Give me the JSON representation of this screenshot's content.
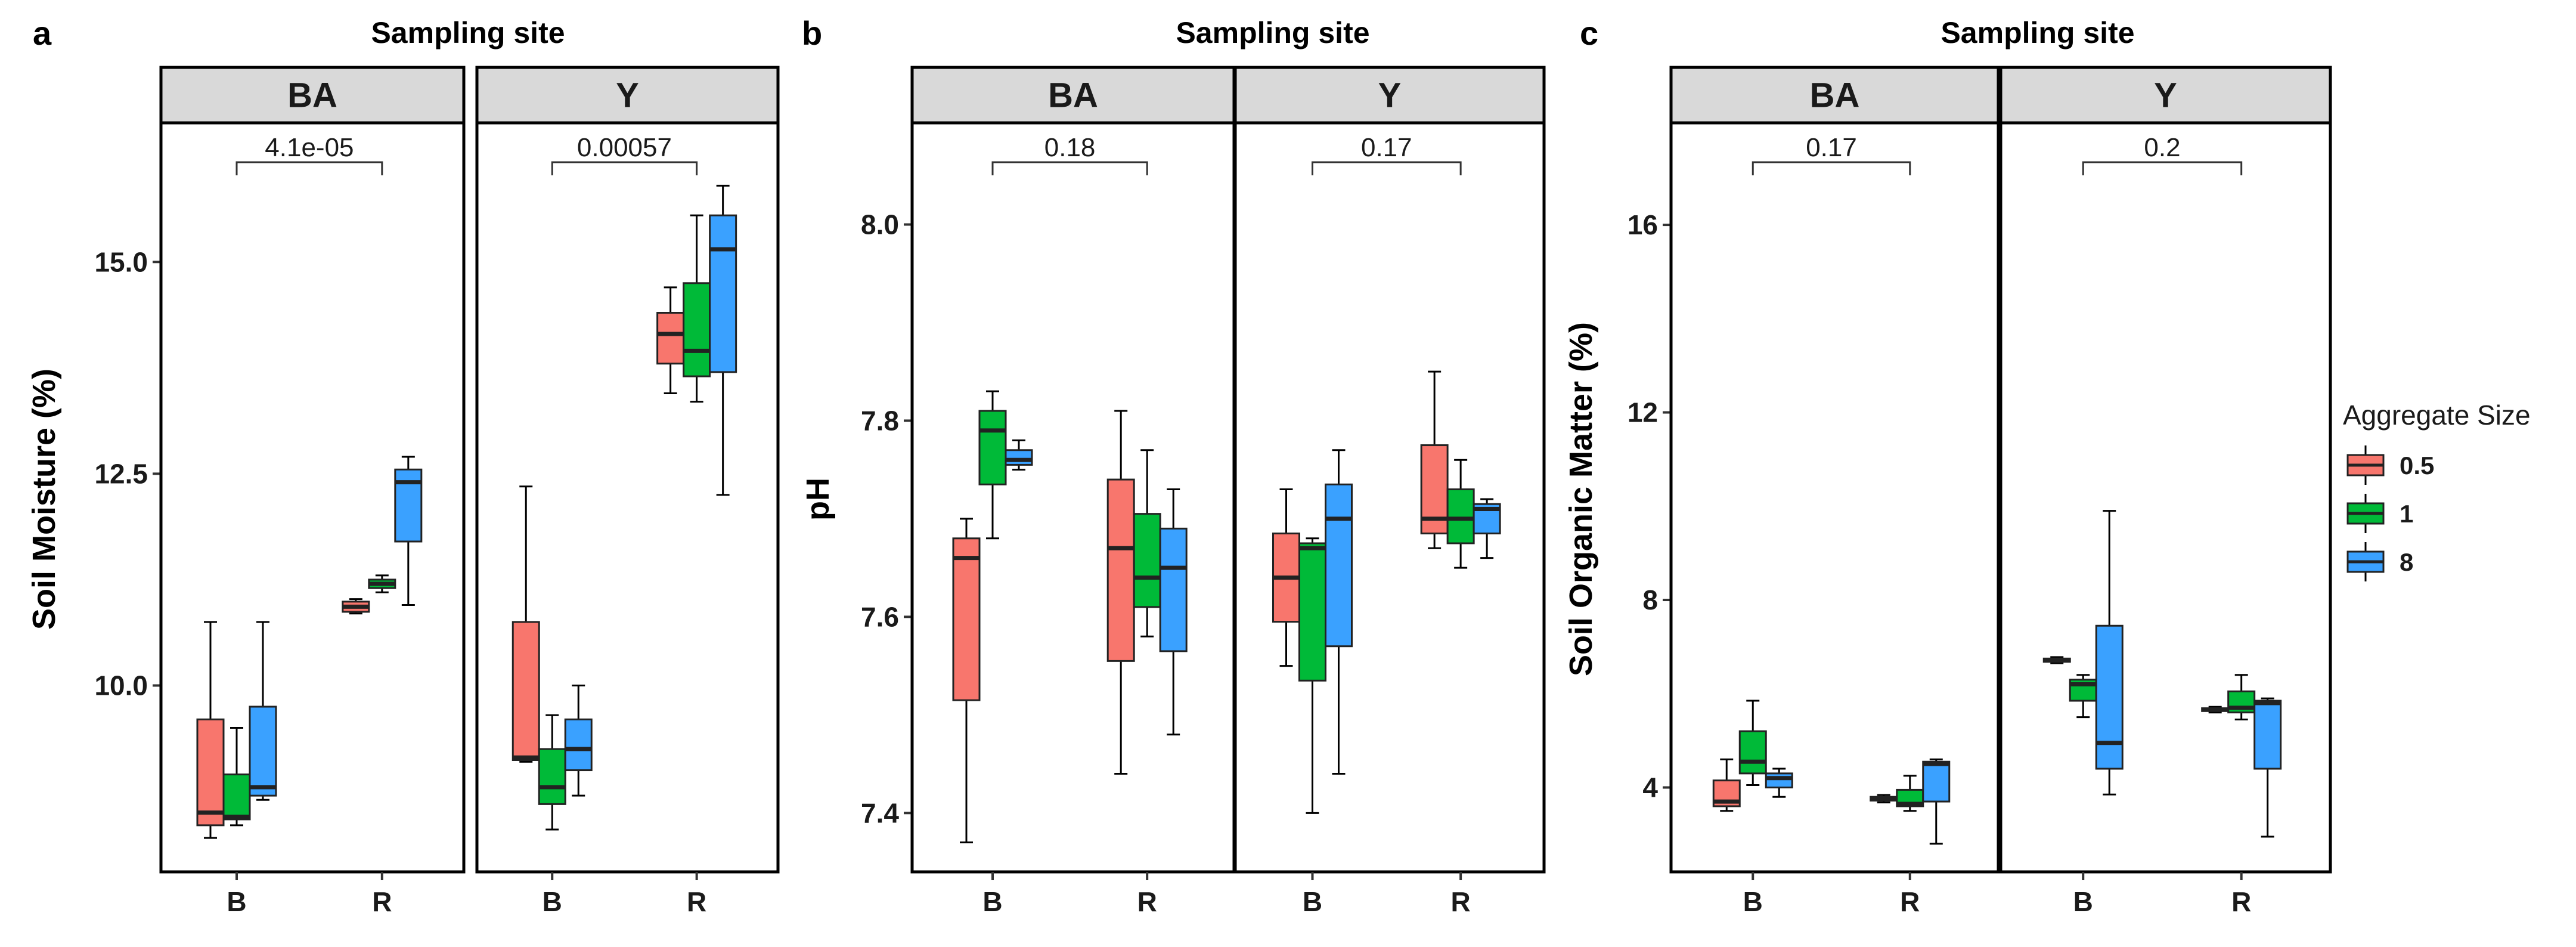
{
  "legend": {
    "title": "Aggregate Size",
    "items": [
      {
        "label": "0.5",
        "color": "#F8766D"
      },
      {
        "label": "1",
        "color": "#00BA38"
      },
      {
        "label": "8",
        "color": "#3AA1FF"
      }
    ]
  },
  "chart_data": [
    {
      "type": "box",
      "panel_label": "a",
      "title": "Sampling site",
      "ylabel": "Soil Moisture (%)",
      "ylim": [
        7.8,
        16.6
      ],
      "yticks": [
        10.0,
        12.5,
        15.0
      ],
      "ytick_labels": [
        "10.0",
        "12.5",
        "15.0"
      ],
      "categories": [
        "B",
        "R"
      ],
      "facets": [
        {
          "strip": "BA",
          "p_value": "4.1e-05",
          "groups": [
            {
              "x": "B",
              "series": [
                {
                  "name": "0.5",
                  "stats": {
                    "min": 8.2,
                    "q1": 8.35,
                    "median": 8.5,
                    "q3": 9.6,
                    "max": 10.75
                  }
                },
                {
                  "name": "1",
                  "stats": {
                    "min": 8.35,
                    "q1": 8.42,
                    "median": 8.45,
                    "q3": 8.95,
                    "max": 9.5
                  }
                },
                {
                  "name": "8",
                  "stats": {
                    "min": 8.65,
                    "q1": 8.7,
                    "median": 8.8,
                    "q3": 9.75,
                    "max": 10.75
                  }
                }
              ]
            },
            {
              "x": "R",
              "series": [
                {
                  "name": "0.5",
                  "stats": {
                    "min": 10.85,
                    "q1": 10.87,
                    "median": 10.93,
                    "q3": 10.99,
                    "max": 11.02
                  }
                },
                {
                  "name": "1",
                  "stats": {
                    "min": 11.1,
                    "q1": 11.15,
                    "median": 11.2,
                    "q3": 11.25,
                    "max": 11.3
                  }
                },
                {
                  "name": "8",
                  "stats": {
                    "min": 10.95,
                    "q1": 11.7,
                    "median": 12.4,
                    "q3": 12.55,
                    "max": 12.7
                  }
                }
              ]
            }
          ]
        },
        {
          "strip": "Y",
          "p_value": "0.00057",
          "groups": [
            {
              "x": "B",
              "series": [
                {
                  "name": "0.5",
                  "stats": {
                    "min": 9.1,
                    "q1": 9.12,
                    "median": 9.15,
                    "q3": 10.75,
                    "max": 12.35
                  }
                },
                {
                  "name": "1",
                  "stats": {
                    "min": 8.3,
                    "q1": 8.6,
                    "median": 8.8,
                    "q3": 9.25,
                    "max": 9.65
                  }
                },
                {
                  "name": "8",
                  "stats": {
                    "min": 8.7,
                    "q1": 9.0,
                    "median": 9.25,
                    "q3": 9.6,
                    "max": 10.0
                  }
                }
              ]
            },
            {
              "x": "R",
              "series": [
                {
                  "name": "0.5",
                  "stats": {
                    "min": 13.45,
                    "q1": 13.8,
                    "median": 14.15,
                    "q3": 14.4,
                    "max": 14.7
                  }
                },
                {
                  "name": "1",
                  "stats": {
                    "min": 13.35,
                    "q1": 13.65,
                    "median": 13.95,
                    "q3": 14.75,
                    "max": 15.55
                  }
                },
                {
                  "name": "8",
                  "stats": {
                    "min": 12.25,
                    "q1": 13.7,
                    "median": 15.15,
                    "q3": 15.55,
                    "max": 15.9
                  }
                }
              ]
            }
          ]
        }
      ]
    },
    {
      "type": "box",
      "panel_label": "b",
      "title": "Sampling site",
      "ylabel": "pH",
      "ylim": [
        7.34,
        8.1
      ],
      "yticks": [
        7.4,
        7.6,
        7.8,
        8.0
      ],
      "ytick_labels": [
        "7.4",
        "7.6",
        "7.8",
        "8.0"
      ],
      "categories": [
        "B",
        "R"
      ],
      "facets": [
        {
          "strip": "BA",
          "p_value": "0.18",
          "groups": [
            {
              "x": "B",
              "series": [
                {
                  "name": "0.5",
                  "stats": {
                    "min": 7.37,
                    "q1": 7.515,
                    "median": 7.66,
                    "q3": 7.68,
                    "max": 7.7
                  }
                },
                {
                  "name": "1",
                  "stats": {
                    "min": 7.68,
                    "q1": 7.735,
                    "median": 7.79,
                    "q3": 7.81,
                    "max": 7.83
                  }
                },
                {
                  "name": "8",
                  "stats": {
                    "min": 7.75,
                    "q1": 7.755,
                    "median": 7.76,
                    "q3": 7.77,
                    "max": 7.78
                  }
                }
              ]
            },
            {
              "x": "R",
              "series": [
                {
                  "name": "0.5",
                  "stats": {
                    "min": 7.44,
                    "q1": 7.555,
                    "median": 7.67,
                    "q3": 7.74,
                    "max": 7.81
                  }
                },
                {
                  "name": "1",
                  "stats": {
                    "min": 7.58,
                    "q1": 7.61,
                    "median": 7.64,
                    "q3": 7.705,
                    "max": 7.77
                  }
                },
                {
                  "name": "8",
                  "stats": {
                    "min": 7.48,
                    "q1": 7.565,
                    "median": 7.65,
                    "q3": 7.69,
                    "max": 7.73
                  }
                }
              ]
            }
          ]
        },
        {
          "strip": "Y",
          "p_value": "0.17",
          "groups": [
            {
              "x": "B",
              "series": [
                {
                  "name": "0.5",
                  "stats": {
                    "min": 7.55,
                    "q1": 7.595,
                    "median": 7.64,
                    "q3": 7.685,
                    "max": 7.73
                  }
                },
                {
                  "name": "1",
                  "stats": {
                    "min": 7.4,
                    "q1": 7.535,
                    "median": 7.67,
                    "q3": 7.675,
                    "max": 7.68
                  }
                },
                {
                  "name": "8",
                  "stats": {
                    "min": 7.44,
                    "q1": 7.57,
                    "median": 7.7,
                    "q3": 7.735,
                    "max": 7.77
                  }
                }
              ]
            },
            {
              "x": "R",
              "series": [
                {
                  "name": "0.5",
                  "stats": {
                    "min": 7.67,
                    "q1": 7.685,
                    "median": 7.7,
                    "q3": 7.775,
                    "max": 7.85
                  }
                },
                {
                  "name": "1",
                  "stats": {
                    "min": 7.65,
                    "q1": 7.675,
                    "median": 7.7,
                    "q3": 7.73,
                    "max": 7.76
                  }
                },
                {
                  "name": "8",
                  "stats": {
                    "min": 7.66,
                    "q1": 7.685,
                    "median": 7.71,
                    "q3": 7.715,
                    "max": 7.72
                  }
                }
              ]
            }
          ]
        }
      ]
    },
    {
      "type": "box",
      "panel_label": "c",
      "title": "Sampling site",
      "ylabel": "Soil Organic Matter (%)",
      "ylim": [
        2.2,
        18.1
      ],
      "yticks": [
        4,
        8,
        12,
        16
      ],
      "ytick_labels": [
        "4",
        "8",
        "12",
        "16"
      ],
      "categories": [
        "B",
        "R"
      ],
      "facets": [
        {
          "strip": "BA",
          "p_value": "0.17",
          "groups": [
            {
              "x": "B",
              "series": [
                {
                  "name": "0.5",
                  "stats": {
                    "min": 3.5,
                    "q1": 3.6,
                    "median": 3.7,
                    "q3": 4.15,
                    "max": 4.6
                  }
                },
                {
                  "name": "1",
                  "stats": {
                    "min": 4.05,
                    "q1": 4.3,
                    "median": 4.55,
                    "q3": 5.2,
                    "max": 5.85
                  }
                },
                {
                  "name": "8",
                  "stats": {
                    "min": 3.8,
                    "q1": 4.0,
                    "median": 4.2,
                    "q3": 4.3,
                    "max": 4.4
                  }
                }
              ]
            },
            {
              "x": "R",
              "series": [
                {
                  "name": "0.5",
                  "stats": {
                    "min": 3.68,
                    "q1": 3.72,
                    "median": 3.76,
                    "q3": 3.8,
                    "max": 3.84
                  }
                },
                {
                  "name": "1",
                  "stats": {
                    "min": 3.5,
                    "q1": 3.6,
                    "median": 3.65,
                    "q3": 3.95,
                    "max": 4.25
                  }
                },
                {
                  "name": "8",
                  "stats": {
                    "min": 2.8,
                    "q1": 3.7,
                    "median": 4.5,
                    "q3": 4.55,
                    "max": 4.6
                  }
                }
              ]
            }
          ]
        },
        {
          "strip": "Y",
          "p_value": "0.2",
          "groups": [
            {
              "x": "B",
              "series": [
                {
                  "name": "0.5",
                  "stats": {
                    "min": 6.65,
                    "q1": 6.68,
                    "median": 6.72,
                    "q3": 6.75,
                    "max": 6.78
                  }
                },
                {
                  "name": "1",
                  "stats": {
                    "min": 5.5,
                    "q1": 5.85,
                    "median": 6.2,
                    "q3": 6.3,
                    "max": 6.4
                  }
                },
                {
                  "name": "8",
                  "stats": {
                    "min": 3.85,
                    "q1": 4.4,
                    "median": 4.95,
                    "q3": 7.45,
                    "max": 9.9
                  }
                }
              ]
            },
            {
              "x": "R",
              "series": [
                {
                  "name": "0.5",
                  "stats": {
                    "min": 5.6,
                    "q1": 5.63,
                    "median": 5.66,
                    "q3": 5.69,
                    "max": 5.72
                  }
                },
                {
                  "name": "1",
                  "stats": {
                    "min": 5.45,
                    "q1": 5.6,
                    "median": 5.7,
                    "q3": 6.05,
                    "max": 6.4
                  }
                },
                {
                  "name": "8",
                  "stats": {
                    "min": 2.95,
                    "q1": 4.4,
                    "median": 5.8,
                    "q3": 5.85,
                    "max": 5.9
                  }
                }
              ]
            }
          ]
        }
      ]
    }
  ]
}
